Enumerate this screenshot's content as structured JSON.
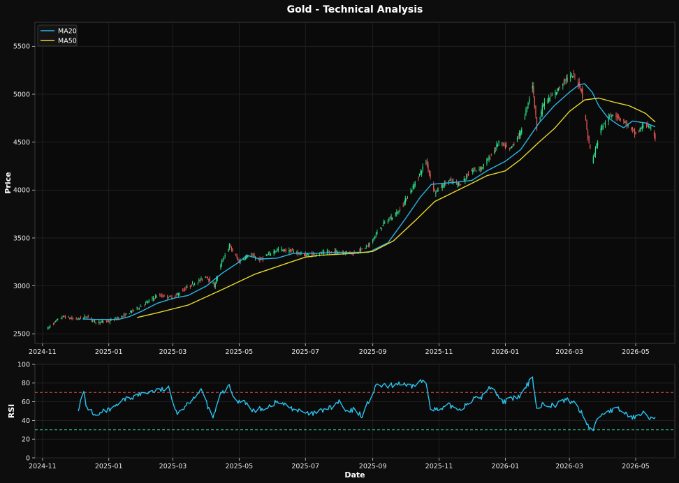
{
  "chart_data": [
    {
      "type": "candlestick",
      "title": "Gold - Technical Analysis",
      "ylabel": "Price",
      "xlabel": "",
      "x_range": [
        "2024-10-25",
        "2026-06-06"
      ],
      "ylim": [
        2400,
        5750
      ],
      "yticks": [
        2500,
        3000,
        3500,
        4000,
        4500,
        5000,
        5500
      ],
      "xticks": [
        "2024-11",
        "2025-01",
        "2025-03",
        "2025-05",
        "2025-07",
        "2025-09",
        "2025-11",
        "2026-01",
        "2026-03",
        "2026-05"
      ],
      "grid": true,
      "legend_position": "top-left",
      "up_color": "#2ee88f",
      "down_color": "#f05a5a",
      "price_keypoints": [
        [
          "2024-11-06",
          2560
        ],
        [
          "2024-11-12",
          2620
        ],
        [
          "2024-11-20",
          2680
        ],
        [
          "2024-12-01",
          2650
        ],
        [
          "2024-12-12",
          2680
        ],
        [
          "2024-12-20",
          2620
        ],
        [
          "2025-01-01",
          2630
        ],
        [
          "2025-01-15",
          2690
        ],
        [
          "2025-02-01",
          2800
        ],
        [
          "2025-02-15",
          2900
        ],
        [
          "2025-03-01",
          2880
        ],
        [
          "2025-03-15",
          2990
        ],
        [
          "2025-04-01",
          3100
        ],
        [
          "2025-04-08",
          3000
        ],
        [
          "2025-04-15",
          3250
        ],
        [
          "2025-04-22",
          3420
        ],
        [
          "2025-05-01",
          3250
        ],
        [
          "2025-05-10",
          3330
        ],
        [
          "2025-05-20",
          3270
        ],
        [
          "2025-06-05",
          3380
        ],
        [
          "2025-06-20",
          3360
        ],
        [
          "2025-07-01",
          3320
        ],
        [
          "2025-07-15",
          3340
        ],
        [
          "2025-08-01",
          3360
        ],
        [
          "2025-08-15",
          3340
        ],
        [
          "2025-08-28",
          3420
        ],
        [
          "2025-09-10",
          3640
        ],
        [
          "2025-09-25",
          3780
        ],
        [
          "2025-10-08",
          4030
        ],
        [
          "2025-10-20",
          4300
        ],
        [
          "2025-10-28",
          3980
        ],
        [
          "2025-11-10",
          4100
        ],
        [
          "2025-11-20",
          4060
        ],
        [
          "2025-12-01",
          4200
        ],
        [
          "2025-12-10",
          4230
        ],
        [
          "2025-12-20",
          4380
        ],
        [
          "2025-12-26",
          4500
        ],
        [
          "2026-01-05",
          4420
        ],
        [
          "2026-01-15",
          4600
        ],
        [
          "2026-01-26",
          5100
        ],
        [
          "2026-01-30",
          4650
        ],
        [
          "2026-02-05",
          4900
        ],
        [
          "2026-02-15",
          5000
        ],
        [
          "2026-02-25",
          5150
        ],
        [
          "2026-03-05",
          5200
        ],
        [
          "2026-03-12",
          5050
        ],
        [
          "2026-03-18",
          4550
        ],
        [
          "2026-03-22",
          4300
        ],
        [
          "2026-03-30",
          4650
        ],
        [
          "2026-04-10",
          4800
        ],
        [
          "2026-04-20",
          4720
        ],
        [
          "2026-05-01",
          4580
        ],
        [
          "2026-05-10",
          4700
        ],
        [
          "2026-05-19",
          4560
        ]
      ],
      "series": [
        {
          "name": "MA20",
          "color": "#29b6e8",
          "points": [
            [
              "2024-12-08",
              2655
            ],
            [
              "2024-12-20",
              2650
            ],
            [
              "2025-01-10",
              2650
            ],
            [
              "2025-01-20",
              2680
            ],
            [
              "2025-02-01",
              2740
            ],
            [
              "2025-02-15",
              2820
            ],
            [
              "2025-03-01",
              2870
            ],
            [
              "2025-03-15",
              2900
            ],
            [
              "2025-04-01",
              3000
            ],
            [
              "2025-04-15",
              3130
            ],
            [
              "2025-05-01",
              3250
            ],
            [
              "2025-05-08",
              3320
            ],
            [
              "2025-05-20",
              3280
            ],
            [
              "2025-06-05",
              3290
            ],
            [
              "2025-06-20",
              3340
            ],
            [
              "2025-07-10",
              3340
            ],
            [
              "2025-08-01",
              3350
            ],
            [
              "2025-08-28",
              3350
            ],
            [
              "2025-09-15",
              3450
            ],
            [
              "2025-10-01",
              3700
            ],
            [
              "2025-10-15",
              3930
            ],
            [
              "2025-10-25",
              4060
            ],
            [
              "2025-11-15",
              4080
            ],
            [
              "2025-12-01",
              4100
            ],
            [
              "2025-12-15",
              4200
            ],
            [
              "2026-01-01",
              4300
            ],
            [
              "2026-01-15",
              4420
            ],
            [
              "2026-02-01",
              4700
            ],
            [
              "2026-02-15",
              4880
            ],
            [
              "2026-03-01",
              5020
            ],
            [
              "2026-03-10",
              5100
            ],
            [
              "2026-03-15",
              5110
            ],
            [
              "2026-03-22",
              5020
            ],
            [
              "2026-03-28",
              4880
            ],
            [
              "2026-04-05",
              4760
            ],
            [
              "2026-04-15",
              4680
            ],
            [
              "2026-04-20",
              4650
            ],
            [
              "2026-04-28",
              4720
            ],
            [
              "2026-05-10",
              4700
            ],
            [
              "2026-05-19",
              4660
            ]
          ]
        },
        {
          "name": "MA50",
          "color": "#e8d82e",
          "points": [
            [
              "2025-01-27",
              2670
            ],
            [
              "2025-02-15",
              2720
            ],
            [
              "2025-03-15",
              2800
            ],
            [
              "2025-04-15",
              2960
            ],
            [
              "2025-05-15",
              3120
            ],
            [
              "2025-06-15",
              3240
            ],
            [
              "2025-07-01",
              3300
            ],
            [
              "2025-07-15",
              3320
            ],
            [
              "2025-08-15",
              3340
            ],
            [
              "2025-09-01",
              3360
            ],
            [
              "2025-09-20",
              3470
            ],
            [
              "2025-10-10",
              3680
            ],
            [
              "2025-10-28",
              3880
            ],
            [
              "2025-11-15",
              3980
            ],
            [
              "2025-12-01",
              4070
            ],
            [
              "2025-12-15",
              4150
            ],
            [
              "2026-01-01",
              4200
            ],
            [
              "2026-01-15",
              4320
            ],
            [
              "2026-02-01",
              4500
            ],
            [
              "2026-02-15",
              4640
            ],
            [
              "2026-03-01",
              4820
            ],
            [
              "2026-03-15",
              4940
            ],
            [
              "2026-03-28",
              4960
            ],
            [
              "2026-04-10",
              4920
            ],
            [
              "2026-04-25",
              4880
            ],
            [
              "2026-05-10",
              4800
            ],
            [
              "2026-05-19",
              4710
            ]
          ]
        }
      ]
    },
    {
      "type": "line",
      "title": "",
      "xlabel": "Date",
      "ylabel": "RSI",
      "x_range": [
        "2024-10-25",
        "2026-06-06"
      ],
      "ylim": [
        0,
        100
      ],
      "yticks": [
        0,
        20,
        40,
        60,
        80,
        100
      ],
      "xticks": [
        "2024-11",
        "2025-01",
        "2025-03",
        "2025-05",
        "2025-07",
        "2025-09",
        "2025-11",
        "2026-01",
        "2026-03",
        "2026-05"
      ],
      "grid": true,
      "reference_lines": [
        {
          "value": 70,
          "color": "#e05050"
        },
        {
          "value": 30,
          "color": "#2ecc8f"
        }
      ],
      "series": [
        {
          "name": "",
          "color": "#29c4f0",
          "points": [
            [
              "2024-12-04",
              53
            ],
            [
              "2024-12-09",
              70
            ],
            [
              "2024-12-11",
              55
            ],
            [
              "2024-12-16",
              50
            ],
            [
              "2024-12-20",
              44
            ],
            [
              "2024-12-28",
              50
            ],
            [
              "2025-01-05",
              52
            ],
            [
              "2025-01-15",
              62
            ],
            [
              "2025-01-25",
              66
            ],
            [
              "2025-02-05",
              70
            ],
            [
              "2025-02-15",
              72
            ],
            [
              "2025-02-25",
              74
            ],
            [
              "2025-03-01",
              62
            ],
            [
              "2025-03-05",
              48
            ],
            [
              "2025-03-12",
              55
            ],
            [
              "2025-03-20",
              65
            ],
            [
              "2025-03-28",
              72
            ],
            [
              "2025-04-03",
              52
            ],
            [
              "2025-04-07",
              43
            ],
            [
              "2025-04-14",
              68
            ],
            [
              "2025-04-22",
              76
            ],
            [
              "2025-04-28",
              60
            ],
            [
              "2025-05-06",
              62
            ],
            [
              "2025-05-12",
              50
            ],
            [
              "2025-05-20",
              52
            ],
            [
              "2025-05-28",
              55
            ],
            [
              "2025-06-05",
              60
            ],
            [
              "2025-06-15",
              55
            ],
            [
              "2025-06-25",
              50
            ],
            [
              "2025-07-05",
              46
            ],
            [
              "2025-07-15",
              50
            ],
            [
              "2025-07-25",
              54
            ],
            [
              "2025-08-01",
              60
            ],
            [
              "2025-08-08",
              48
            ],
            [
              "2025-08-15",
              52
            ],
            [
              "2025-08-22",
              45
            ],
            [
              "2025-08-28",
              60
            ],
            [
              "2025-09-05",
              78
            ],
            [
              "2025-09-15",
              76
            ],
            [
              "2025-09-25",
              80
            ],
            [
              "2025-10-05",
              75
            ],
            [
              "2025-10-15",
              82
            ],
            [
              "2025-10-20",
              80
            ],
            [
              "2025-10-24",
              55
            ],
            [
              "2025-11-01",
              50
            ],
            [
              "2025-11-10",
              56
            ],
            [
              "2025-11-20",
              52
            ],
            [
              "2025-12-01",
              62
            ],
            [
              "2025-12-10",
              65
            ],
            [
              "2025-12-20",
              78
            ],
            [
              "2025-12-28",
              60
            ],
            [
              "2026-01-05",
              62
            ],
            [
              "2026-01-15",
              66
            ],
            [
              "2026-01-26",
              87
            ],
            [
              "2026-01-30",
              52
            ],
            [
              "2026-02-05",
              58
            ],
            [
              "2026-02-15",
              56
            ],
            [
              "2026-02-25",
              62
            ],
            [
              "2026-03-05",
              60
            ],
            [
              "2026-03-12",
              48
            ],
            [
              "2026-03-18",
              35
            ],
            [
              "2026-03-22",
              28
            ],
            [
              "2026-03-28",
              45
            ],
            [
              "2026-04-05",
              50
            ],
            [
              "2026-04-15",
              52
            ],
            [
              "2026-04-25",
              45
            ],
            [
              "2026-05-02",
              42
            ],
            [
              "2026-05-08",
              52
            ],
            [
              "2026-05-15",
              42
            ],
            [
              "2026-05-19",
              43
            ]
          ]
        }
      ]
    }
  ]
}
